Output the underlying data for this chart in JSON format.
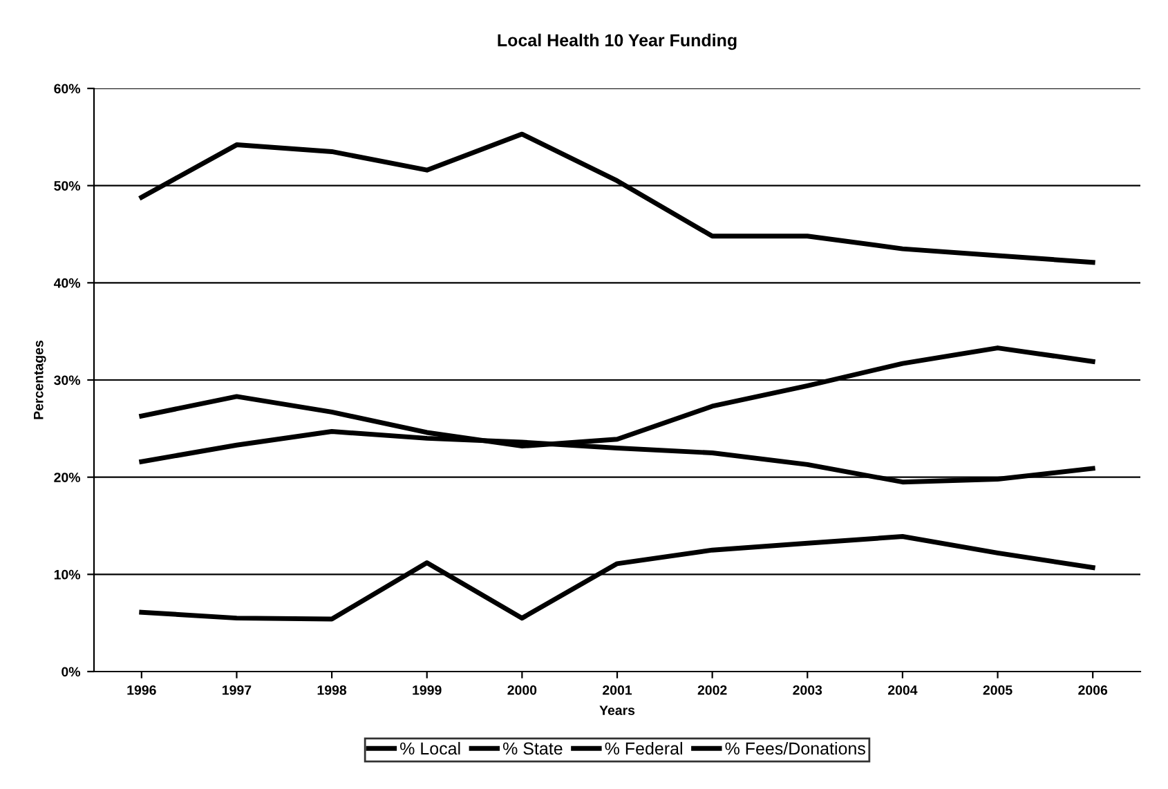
{
  "chart_data": {
    "type": "line",
    "title": "Local Health 10 Year Funding",
    "xlabel": "Years",
    "ylabel": "Percentages",
    "categories": [
      "1996",
      "1997",
      "1998",
      "1999",
      "2000",
      "2001",
      "2002",
      "2003",
      "2004",
      "2005",
      "2006"
    ],
    "series": [
      {
        "name": "% Local",
        "color": "#000000",
        "values": [
          48.8,
          54.2,
          53.5,
          51.6,
          55.3,
          50.5,
          44.8,
          44.8,
          43.5,
          42.8,
          42.1
        ]
      },
      {
        "name": "% State",
        "color": "#000000",
        "values": [
          26.3,
          28.3,
          26.7,
          24.6,
          23.2,
          23.9,
          27.3,
          29.4,
          31.7,
          33.3,
          31.9
        ]
      },
      {
        "name": "% Federal",
        "color": "#000000",
        "values": [
          21.6,
          23.3,
          24.7,
          24.0,
          23.6,
          23.0,
          22.5,
          21.3,
          19.5,
          19.8,
          20.9
        ]
      },
      {
        "name": "% Fees/Donations",
        "color": "#000000",
        "values": [
          6.1,
          5.5,
          5.4,
          11.2,
          5.5,
          11.1,
          12.5,
          13.2,
          13.9,
          12.2,
          10.7
        ]
      }
    ],
    "ylim": [
      0,
      60
    ],
    "yticks": [
      {
        "value": 0,
        "label": "0%"
      },
      {
        "value": 10,
        "label": "10%"
      },
      {
        "value": 20,
        "label": "20%"
      },
      {
        "value": 30,
        "label": "30%"
      },
      {
        "value": 40,
        "label": "40%"
      },
      {
        "value": 50,
        "label": "50%"
      },
      {
        "value": 60,
        "label": "60%"
      }
    ],
    "grid": "y",
    "legend": "bottom",
    "marker": "none",
    "line_style": "solid"
  }
}
